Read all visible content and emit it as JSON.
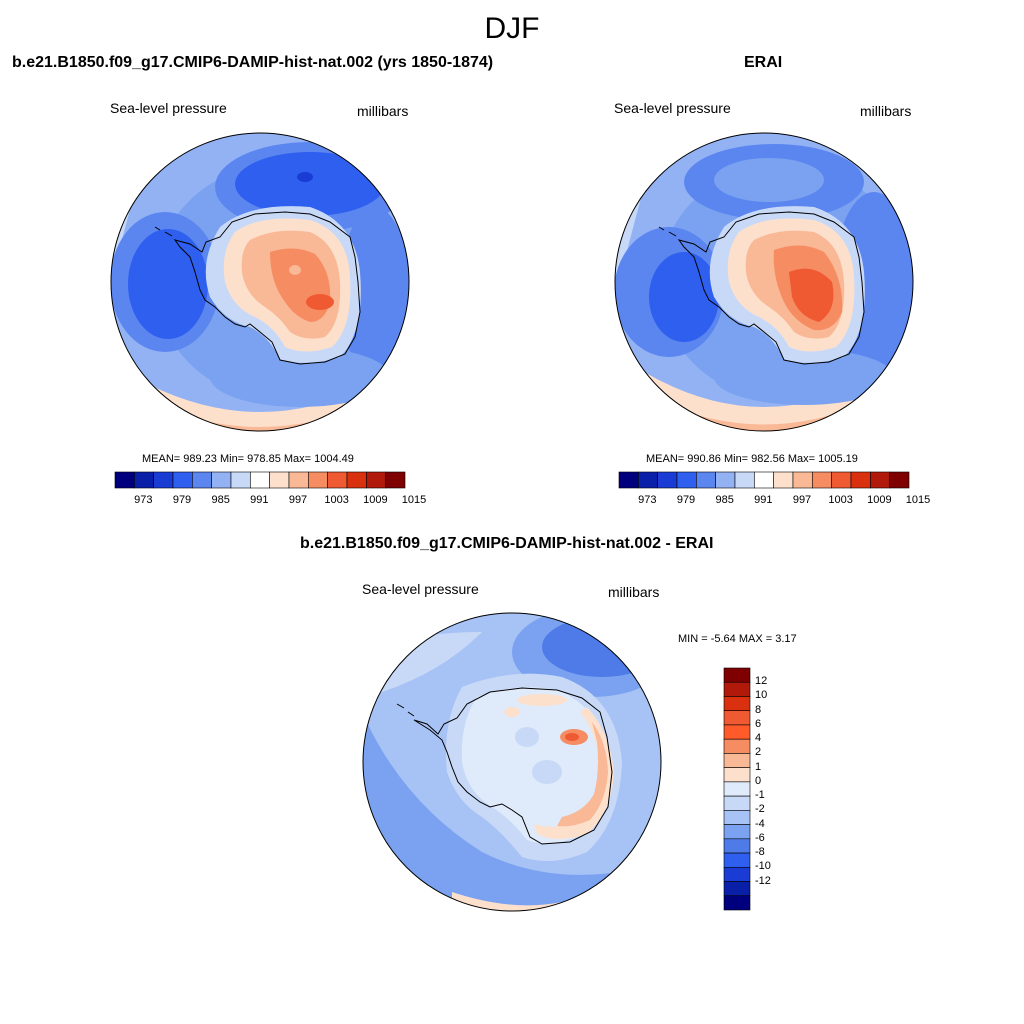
{
  "title": "DJF",
  "panels": {
    "model": {
      "title": "b.e21.B1850.f09_g17.CMIP6-DAMIP-hist-nat.002 (yrs 1850-1874)",
      "left_label": "Sea-level pressure",
      "right_label": "millibars",
      "stats": "MEAN= 989.23  Min= 978.85  Max= 1004.49",
      "colorbar_ticks": [
        "973",
        "979",
        "985",
        "991",
        "997",
        "1003",
        "1009",
        "1015"
      ]
    },
    "obs": {
      "title": "ERAI",
      "left_label": "Sea-level pressure",
      "right_label": "millibars",
      "stats": "MEAN= 990.86  Min= 982.56  Max= 1005.19",
      "colorbar_ticks": [
        "973",
        "979",
        "985",
        "991",
        "997",
        "1003",
        "1009",
        "1015"
      ]
    },
    "diff": {
      "title": "b.e21.B1850.f09_g17.CMIP6-DAMIP-hist-nat.002 - ERAI",
      "left_label": "Sea-level pressure",
      "right_label": "millibars",
      "stats": "MIN =  -5.64 MAX =   3.17",
      "colorbar_ticks": [
        "12",
        "10",
        "8",
        "6",
        "4",
        "2",
        "1",
        "0",
        "-1",
        "-2",
        "-4",
        "-6",
        "-8",
        "-10",
        "-12"
      ]
    }
  },
  "colors": {
    "abs_scale": [
      "#00007f",
      "#0a1fa8",
      "#1a3cd4",
      "#2e5fee",
      "#5b86f0",
      "#93b2f4",
      "#c8d9f8",
      "#ffffff",
      "#fde0cc",
      "#f9b896",
      "#f68c62",
      "#f05a33",
      "#d9300f",
      "#b1190a",
      "#7f0000"
    ],
    "diff_scale": [
      "#7f0000",
      "#b1190a",
      "#d9300f",
      "#f05a33",
      "#ff5a2a",
      "#f68c62",
      "#f9b896",
      "#fde0cc",
      "#dfeafb",
      "#c8d9f8",
      "#a7c2f4",
      "#7aa2f0",
      "#4e7be8",
      "#2e5fee",
      "#1a3cd4",
      "#0a1fa8",
      "#00007f"
    ],
    "coast": "#000000"
  }
}
